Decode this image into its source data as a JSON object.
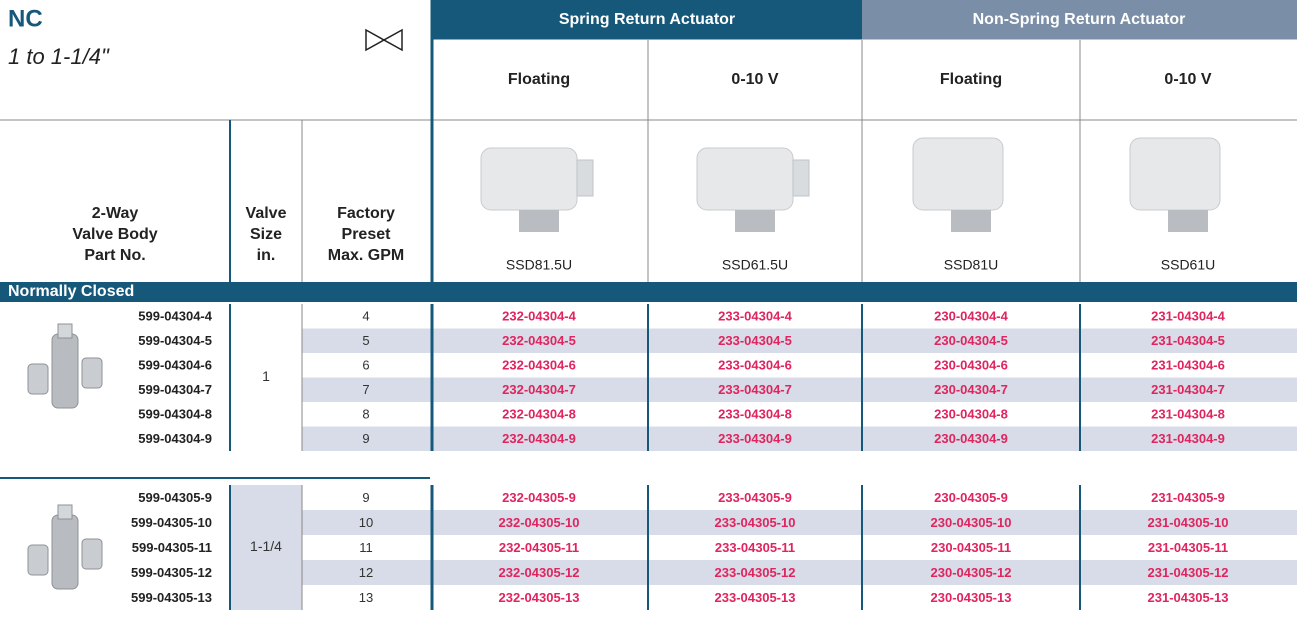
{
  "header": {
    "series": "NC",
    "range": "1 to 1-1/4\""
  },
  "actuator_groups": [
    "Spring Return Actuator",
    "Non-Spring Return Actuator"
  ],
  "control_types": [
    "Floating",
    "0-10 V",
    "Floating",
    "0-10 V"
  ],
  "models": [
    "SSD81.5U",
    "SSD61.5U",
    "SSD81U",
    "SSD61U"
  ],
  "column_headers": [
    [
      "2-Way",
      "Valve Body",
      "Part No."
    ],
    [
      "Valve",
      "Size",
      "in."
    ],
    [
      "Factory",
      "Preset",
      "Max. GPM"
    ]
  ],
  "section": "Normally Closed",
  "groups": [
    {
      "size": "1",
      "rows": [
        {
          "part": "599-04304-4",
          "gpm": "4",
          "codes": [
            "232-04304-4",
            "233-04304-4",
            "230-04304-4",
            "231-04304-4"
          ]
        },
        {
          "part": "599-04304-5",
          "gpm": "5",
          "codes": [
            "232-04304-5",
            "233-04304-5",
            "230-04304-5",
            "231-04304-5"
          ]
        },
        {
          "part": "599-04304-6",
          "gpm": "6",
          "codes": [
            "232-04304-6",
            "233-04304-6",
            "230-04304-6",
            "231-04304-6"
          ]
        },
        {
          "part": "599-04304-7",
          "gpm": "7",
          "codes": [
            "232-04304-7",
            "233-04304-7",
            "230-04304-7",
            "231-04304-7"
          ]
        },
        {
          "part": "599-04304-8",
          "gpm": "8",
          "codes": [
            "232-04304-8",
            "233-04304-8",
            "230-04304-8",
            "231-04304-8"
          ]
        },
        {
          "part": "599-04304-9",
          "gpm": "9",
          "codes": [
            "232-04304-9",
            "233-04304-9",
            "230-04304-9",
            "231-04304-9"
          ]
        }
      ]
    },
    {
      "size": "1-1/4",
      "rows": [
        {
          "part": "599-04305-9",
          "gpm": "9",
          "codes": [
            "232-04305-9",
            "233-04305-9",
            "230-04305-9",
            "231-04305-9"
          ]
        },
        {
          "part": "599-04305-10",
          "gpm": "10",
          "codes": [
            "232-04305-10",
            "233-04305-10",
            "230-04305-10",
            "231-04305-10"
          ]
        },
        {
          "part": "599-04305-11",
          "gpm": "11",
          "codes": [
            "232-04305-11",
            "233-04305-11",
            "230-04305-11",
            "231-04305-11"
          ]
        },
        {
          "part": "599-04305-12",
          "gpm": "12",
          "codes": [
            "232-04305-12",
            "233-04305-12",
            "230-04305-12",
            "231-04305-12"
          ]
        },
        {
          "part": "599-04305-13",
          "gpm": "13",
          "codes": [
            "232-04305-13",
            "233-04305-13",
            "230-04305-13",
            "231-04305-13"
          ]
        }
      ]
    }
  ]
}
